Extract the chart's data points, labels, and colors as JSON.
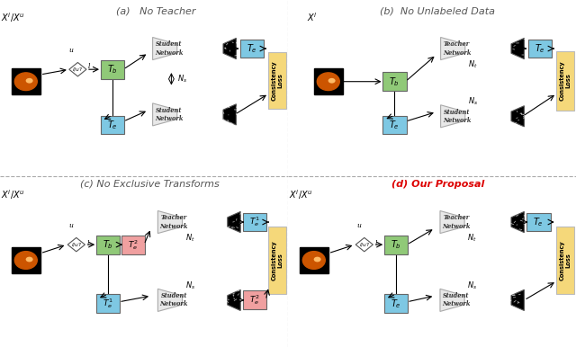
{
  "bg_color": "#ffffff",
  "green": "#90c978",
  "blue": "#7ec8e3",
  "yellow": "#f5d87a",
  "pink": "#f0a0a0",
  "gray_bg": "#e8e8e8",
  "panels": {
    "a": {
      "title": "(a)   No Teacher",
      "title_color": "#555555",
      "title_bold": false,
      "input_label": "$X^i/X^u$",
      "has_diamond": true,
      "upper_network": "Student\nNetwork",
      "lower_network": "Student\nNetwork",
      "upper_network_label": null,
      "lower_network_label": "$N_s$",
      "upper_Te_color": "blue",
      "lower_Te_label": "$T_e$",
      "lower_Te_color": "blue",
      "upper_Te_label": "$T_e$",
      "Tb_label": "$T_b$",
      "has_pink_Te2": false
    },
    "b": {
      "title": "(b)  No Unlabeled Data",
      "title_color": "#555555",
      "title_bold": false,
      "input_label": "$X^l$",
      "has_diamond": false,
      "upper_network": "Teacher\nNetwork",
      "lower_network": "Student\nNetwork",
      "upper_network_label": "$N_t$",
      "lower_network_label": "$N_s$",
      "upper_Te_color": "blue",
      "lower_Te_label": "$T_e$",
      "lower_Te_color": "blue",
      "upper_Te_label": "$T_e$",
      "Tb_label": "$T_b$",
      "has_pink_Te2": false
    },
    "c": {
      "title": "(c) No Exclusive Transforms",
      "title_color": "#555555",
      "title_bold": false,
      "input_label": "$X^i/X^u$",
      "has_diamond": true,
      "upper_network": "Teacher\nNetwork",
      "lower_network": "Student\nNetwork",
      "upper_network_label": "$N_t$",
      "lower_network_label": "$N_s$",
      "upper_Te_color": "blue",
      "lower_Te_label": "$T_e^1$",
      "lower_Te_color": "blue",
      "upper_Te_label": "$T_e^1$",
      "Tb_label": "$T_b$",
      "has_pink_Te2": true,
      "Te2_after_Tb": "$T_e^2$",
      "Te2_output_lower": "$T_e^2$"
    },
    "d": {
      "title": "(d) Our Proposal",
      "title_color": "#dd0000",
      "title_bold": true,
      "input_label": "$X^i/X^u$",
      "has_diamond": true,
      "upper_network": "Teacher\nNetwork",
      "lower_network": "Student\nNetwork",
      "upper_network_label": "$N_t$",
      "lower_network_label": "$N_s$",
      "upper_Te_color": "blue",
      "lower_Te_label": "$T_e$",
      "lower_Te_color": "blue",
      "upper_Te_label": "$T_e$",
      "Tb_label": "$T_b$",
      "has_pink_Te2": false
    }
  }
}
